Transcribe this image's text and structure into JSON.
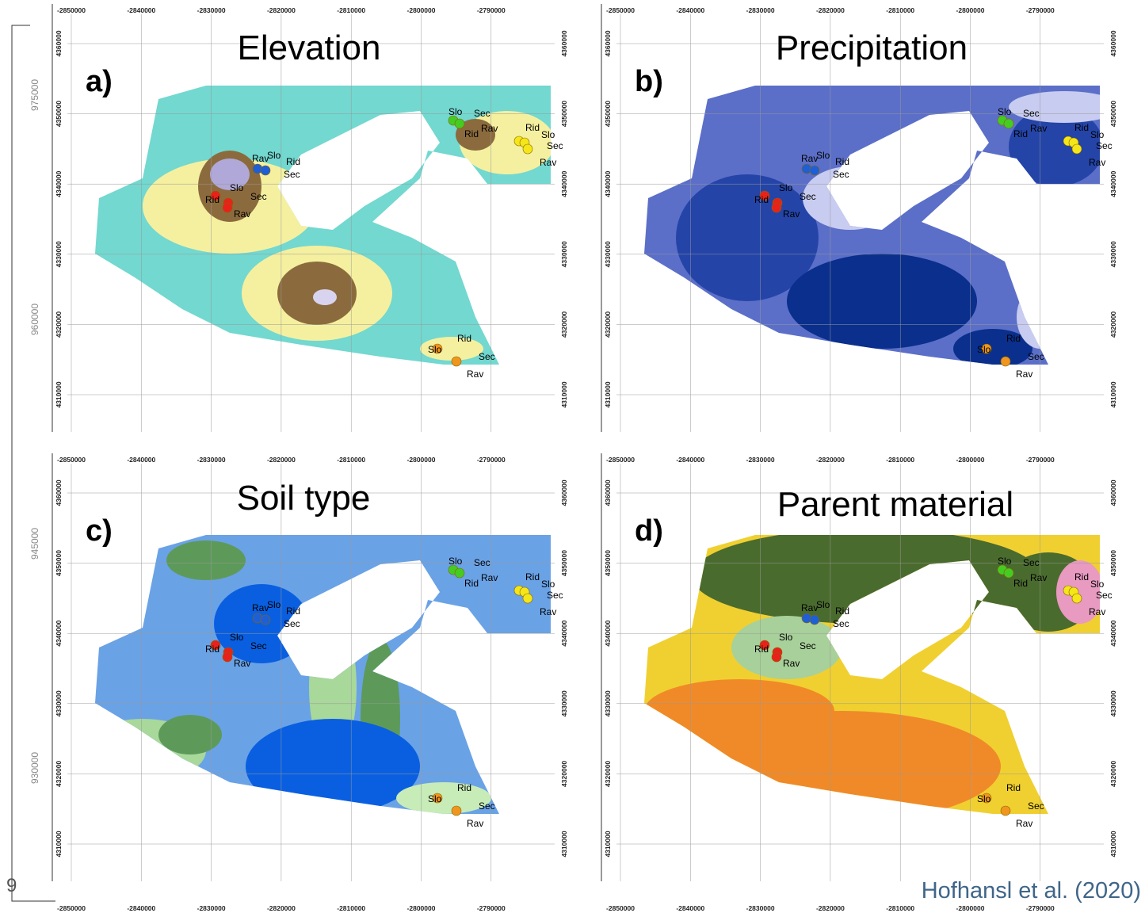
{
  "panels": [
    {
      "letter": "a)",
      "title": "Elevation"
    },
    {
      "letter": "b)",
      "title": "Precipitation"
    },
    {
      "letter": "c)",
      "title": "Soil type"
    },
    {
      "letter": "d)",
      "title": "Parent material"
    }
  ],
  "x_ticks": [
    "-2850000",
    "-2840000",
    "-2830000",
    "-2820000",
    "-2810000",
    "-2800000",
    "-2790000"
  ],
  "y_ticks": [
    "4360000",
    "4350000",
    "4340000",
    "4330000",
    "4320000",
    "4310000"
  ],
  "site_groups": [
    {
      "color": "#44cc22",
      "labels": [
        "Slo",
        "Sec",
        "Rav",
        "Rid"
      ]
    },
    {
      "color": "#f5e61a",
      "labels": [
        "Rid",
        "Slo",
        "Sec",
        "Rav"
      ]
    },
    {
      "color": "#1f5fd6",
      "labels": [
        "Rav",
        "Slo",
        "Rid",
        "Sec"
      ]
    },
    {
      "color": "#e8221a",
      "labels": [
        "Slo",
        "Rid",
        "Sec",
        "Rav"
      ]
    },
    {
      "color": "#f0961e",
      "labels": [
        "Rid",
        "Slo",
        "Sec",
        "Rav"
      ]
    }
  ],
  "left_axis": [
    "975000",
    "960000",
    "945000",
    "930000"
  ],
  "page_number": "9",
  "citation": "Hofhansl et al. (2020)"
}
